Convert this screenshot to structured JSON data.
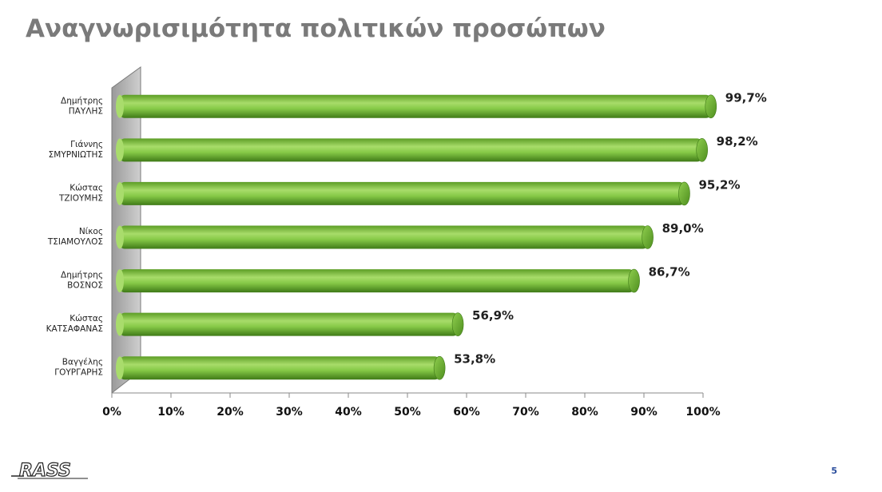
{
  "header": {
    "title": "Αναγνωρισιμότητα πολιτικών προσώπων"
  },
  "footer": {
    "page_number": "5",
    "logo_text": "RASS"
  },
  "colors": {
    "bar": "#7ec63c",
    "bar_dark": "#3f7a17",
    "bar_light": "#b4e07d",
    "wall": "#bdbdbd",
    "title": "#7a7a7a",
    "page_number": "#2a4d9c"
  },
  "chart_data": {
    "type": "bar",
    "orientation": "horizontal",
    "title": "",
    "xlabel": "",
    "ylabel": "",
    "xlim": [
      0,
      100
    ],
    "categories": [
      [
        "Δημήτρης",
        "ΠΑΥΛΗΣ"
      ],
      [
        "Γιάννης",
        "ΣΜΥΡΝΙΩΤΗΣ"
      ],
      [
        "Κώστας",
        "ΤΖΙΟΥΜΗΣ"
      ],
      [
        "Νίκος",
        "ΤΣΙΑΜΟΥΛΟΣ"
      ],
      [
        "Δημήτρης",
        "ΒΟΣΝΟΣ"
      ],
      [
        "Κώστας",
        "ΚΑΤΣΑΦΑΝΑΣ"
      ],
      [
        "Βαγγέλης",
        "ΓΟΥΡΓΑΡΗΣ"
      ]
    ],
    "values": [
      99.7,
      98.2,
      95.2,
      89.0,
      86.7,
      56.9,
      53.8
    ],
    "value_labels": [
      "99,7%",
      "98,2%",
      "95,2%",
      "89,0%",
      "86,7%",
      "56,9%",
      "53,8%"
    ],
    "x_ticks": [
      "0%",
      "10%",
      "20%",
      "30%",
      "40%",
      "50%",
      "60%",
      "70%",
      "80%",
      "90%",
      "100%"
    ],
    "grid": false,
    "legend": "none"
  }
}
